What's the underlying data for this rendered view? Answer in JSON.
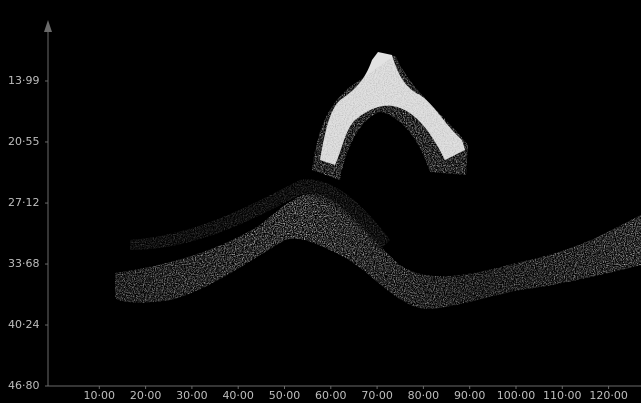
{
  "chart_data": {
    "type": "echogram",
    "xlim": [
      0,
      127
    ],
    "xticks": [
      {
        "value": 10,
        "label": "10·00"
      },
      {
        "value": 20,
        "label": "20·00"
      },
      {
        "value": 30,
        "label": "30·00"
      },
      {
        "value": 40,
        "label": "40·00"
      },
      {
        "value": 50,
        "label": "50·00"
      },
      {
        "value": 60,
        "label": "60·00"
      },
      {
        "value": 70,
        "label": "70·00"
      },
      {
        "value": 80,
        "label": "80·00"
      },
      {
        "value": 90,
        "label": "90·00"
      },
      {
        "value": 100,
        "label": "100·00"
      },
      {
        "value": 110,
        "label": "110·00"
      },
      {
        "value": 120,
        "label": "120·00"
      }
    ],
    "ylim": [
      7.43,
      46.8
    ],
    "y_inverted": true,
    "yticks": [
      {
        "value": 13.99,
        "label": "13·99"
      },
      {
        "value": 20.55,
        "label": "20·55"
      },
      {
        "value": 27.12,
        "label": "27·12"
      },
      {
        "value": 33.68,
        "label": "33·68"
      },
      {
        "value": 40.24,
        "label": "40·24"
      },
      {
        "value": 46.8,
        "label": "46·80"
      }
    ]
  }
}
